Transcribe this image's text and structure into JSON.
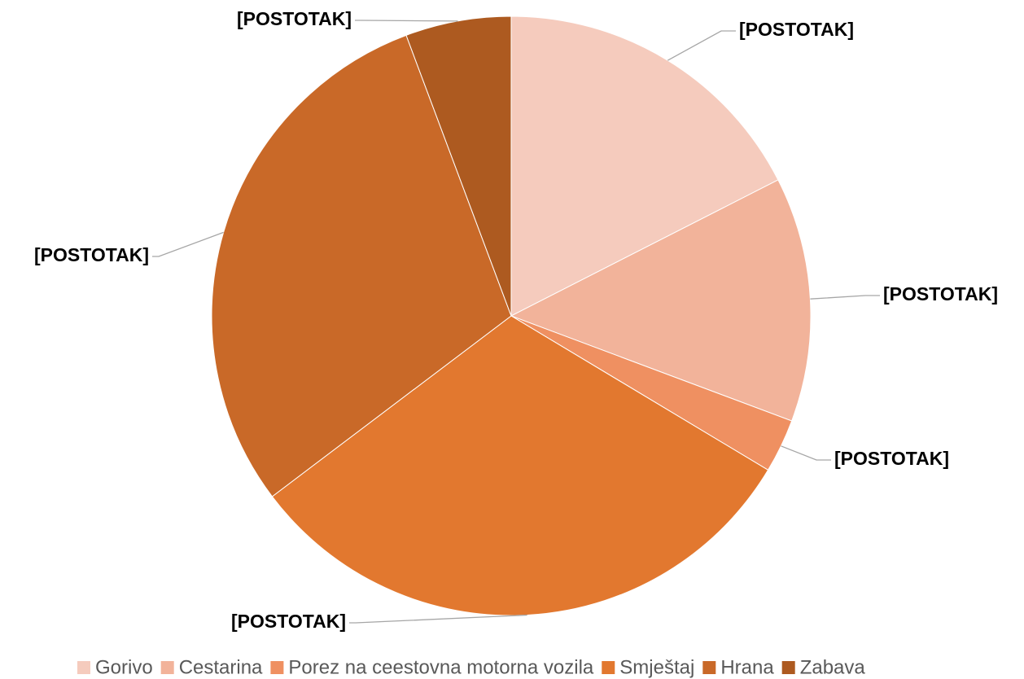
{
  "chart_data": {
    "type": "pie",
    "categories": [
      "Gorivo",
      "Cestarina",
      "Porez na ceestovna motorna vozila",
      "Smještaj",
      "Hrana",
      "Zabava"
    ],
    "values": [
      17.5,
      13.2,
      2.9,
      31.1,
      29.6,
      5.7
    ],
    "value_labels": [
      "[POSTOTAK]",
      "[POSTOTAK]",
      "[POSTOTAK]",
      "[POSTOTAK]",
      "[POSTOTAK]",
      "[POSTOTAK]"
    ],
    "colors": [
      "#f5cbbd",
      "#f2b39a",
      "#ef9061",
      "#e2782f",
      "#c96928",
      "#ad5a20"
    ],
    "legend": "bottom"
  }
}
